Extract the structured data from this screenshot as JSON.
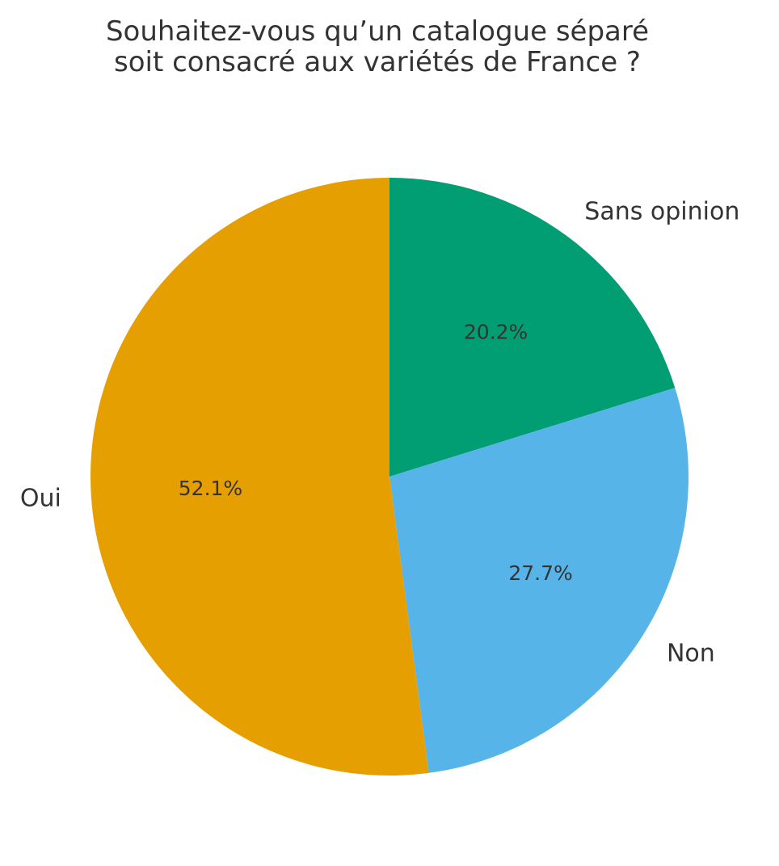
{
  "chart_data": {
    "type": "pie",
    "title": [
      "Souhaitez-vous qu’un catalogue séparé",
      "soit consacré aux variétés de France ?"
    ],
    "categories": [
      "Sans opinion",
      "Non",
      "Oui"
    ],
    "values": [
      20.2,
      27.7,
      52.1
    ],
    "value_labels": [
      "20.2%",
      "27.7%",
      "52.1%"
    ],
    "colors": [
      "#029e73",
      "#56b4e9",
      "#e69f00"
    ],
    "start": "top",
    "direction": "clockwise",
    "legend": "none"
  }
}
